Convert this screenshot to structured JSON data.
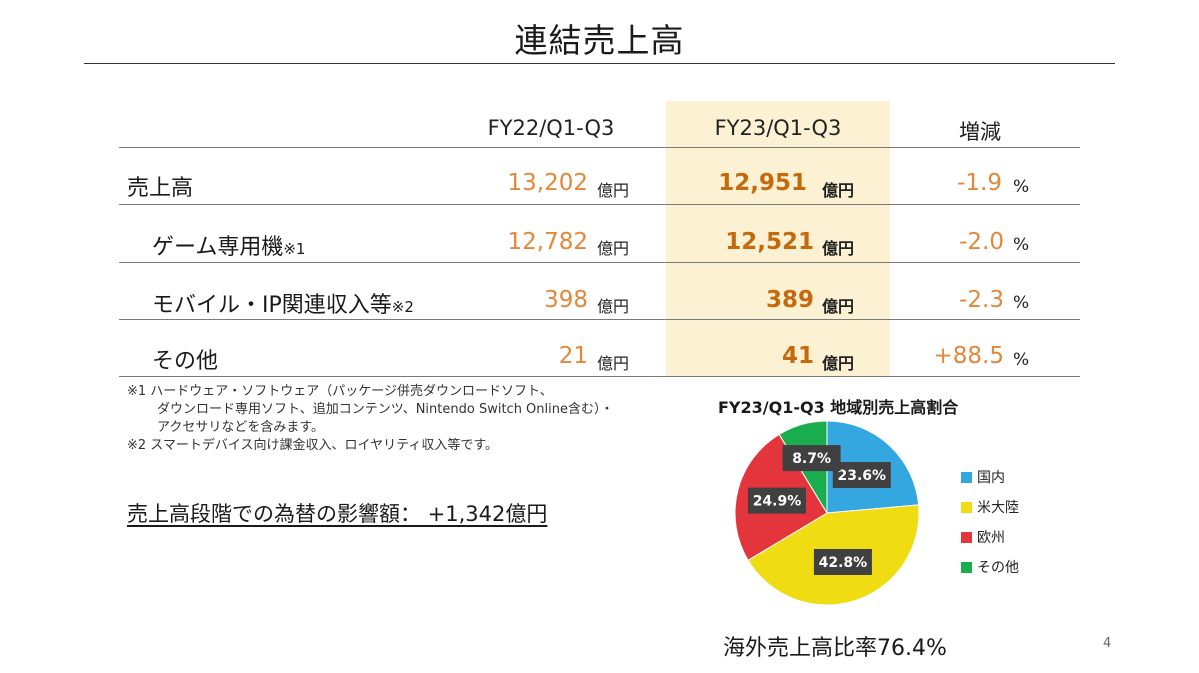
{
  "title": "連結売上高",
  "table": {
    "headers": [
      "FY22/Q1-Q3",
      "FY23/Q1-Q3",
      "増減"
    ],
    "unit": "億円",
    "pct_unit": "%",
    "rows": [
      {
        "label": "売上高",
        "note": "",
        "prev": "13,202",
        "curr": "12,951",
        "change": "-1.9"
      },
      {
        "label": "ゲーム専用機",
        "note": "※1",
        "prev": "12,782",
        "curr": "12,521",
        "change": "-2.0"
      },
      {
        "label": "モバイル・IP関連収入等",
        "note": "※2",
        "prev": "398",
        "curr": "389",
        "change": "-2.3"
      },
      {
        "label": "その他",
        "note": "",
        "prev": "21",
        "curr": "41",
        "change": "+88.5"
      }
    ]
  },
  "footnotes": [
    "※1 ハードウェア・ソフトウェア（パッケージ併売ダウンロードソフト、",
    "ダウンロード専用ソフト、追加コンテンツ、Nintendo Switch Online含む）・",
    "アクセサリなどを含みます。",
    "※2 スマートデバイス向け課金収入、ロイヤリティ収入等です。"
  ],
  "fx_impact": "売上高段階での為替の影響額：  +1,342億円",
  "chart_data": {
    "type": "pie",
    "title": "FY23/Q1-Q3 地域別売上高割合",
    "categories": [
      "国内",
      "米大陸",
      "欧州",
      "その他"
    ],
    "values": [
      23.6,
      42.8,
      24.9,
      8.7
    ],
    "labels": [
      "23.6%",
      "42.8%",
      "24.9%",
      "8.7%"
    ],
    "colors": [
      "#35a7e0",
      "#efdc12",
      "#e4353d",
      "#1aae4f"
    ],
    "legend": "right"
  },
  "overseas_ratio": "海外売上高比率76.4%",
  "page_number": "4"
}
